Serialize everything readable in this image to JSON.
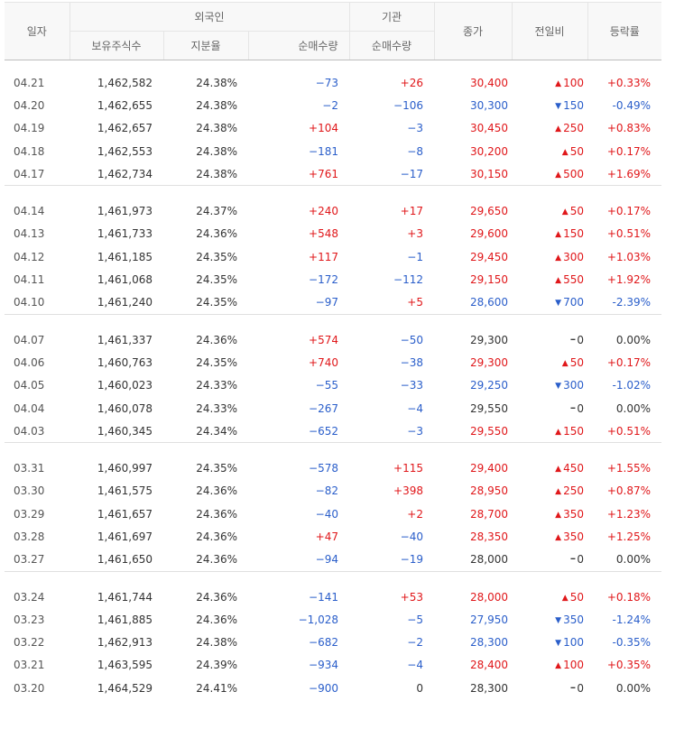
{
  "headers": {
    "date": "일자",
    "foreign": "외국인",
    "institution": "기관",
    "holdings": "보유주식수",
    "ratio": "지분율",
    "foreign_net": "순매수량",
    "inst_net": "순매수량",
    "close": "종가",
    "change": "전일비",
    "rate": "등락률"
  },
  "groups": [
    [
      {
        "date": "04.21",
        "holdings": "1,462,582",
        "ratio": "24.38%",
        "fnet": "−73",
        "inet": "+26",
        "close": "30,400",
        "dir": "up",
        "chg": "100",
        "rate": "+0.33%"
      },
      {
        "date": "04.20",
        "holdings": "1,462,655",
        "ratio": "24.38%",
        "fnet": "−2",
        "inet": "−106",
        "close": "30,300",
        "dir": "down",
        "chg": "150",
        "rate": "-0.49%"
      },
      {
        "date": "04.19",
        "holdings": "1,462,657",
        "ratio": "24.38%",
        "fnet": "+104",
        "inet": "−3",
        "close": "30,450",
        "dir": "up",
        "chg": "250",
        "rate": "+0.83%"
      },
      {
        "date": "04.18",
        "holdings": "1,462,553",
        "ratio": "24.38%",
        "fnet": "−181",
        "inet": "−8",
        "close": "30,200",
        "dir": "up",
        "chg": "50",
        "rate": "+0.17%"
      },
      {
        "date": "04.17",
        "holdings": "1,462,734",
        "ratio": "24.38%",
        "fnet": "+761",
        "inet": "−17",
        "close": "30,150",
        "dir": "up",
        "chg": "500",
        "rate": "+1.69%"
      }
    ],
    [
      {
        "date": "04.14",
        "holdings": "1,461,973",
        "ratio": "24.37%",
        "fnet": "+240",
        "inet": "+17",
        "close": "29,650",
        "dir": "up",
        "chg": "50",
        "rate": "+0.17%"
      },
      {
        "date": "04.13",
        "holdings": "1,461,733",
        "ratio": "24.36%",
        "fnet": "+548",
        "inet": "+3",
        "close": "29,600",
        "dir": "up",
        "chg": "150",
        "rate": "+0.51%"
      },
      {
        "date": "04.12",
        "holdings": "1,461,185",
        "ratio": "24.35%",
        "fnet": "+117",
        "inet": "−1",
        "close": "29,450",
        "dir": "up",
        "chg": "300",
        "rate": "+1.03%"
      },
      {
        "date": "04.11",
        "holdings": "1,461,068",
        "ratio": "24.35%",
        "fnet": "−172",
        "inet": "−112",
        "close": "29,150",
        "dir": "up",
        "chg": "550",
        "rate": "+1.92%"
      },
      {
        "date": "04.10",
        "holdings": "1,461,240",
        "ratio": "24.35%",
        "fnet": "−97",
        "inet": "+5",
        "close": "28,600",
        "dir": "down",
        "chg": "700",
        "rate": "-2.39%"
      }
    ],
    [
      {
        "date": "04.07",
        "holdings": "1,461,337",
        "ratio": "24.36%",
        "fnet": "+574",
        "inet": "−50",
        "close": "29,300",
        "dir": "flat",
        "chg": "0",
        "rate": "0.00%"
      },
      {
        "date": "04.06",
        "holdings": "1,460,763",
        "ratio": "24.35%",
        "fnet": "+740",
        "inet": "−38",
        "close": "29,300",
        "dir": "up",
        "chg": "50",
        "rate": "+0.17%"
      },
      {
        "date": "04.05",
        "holdings": "1,460,023",
        "ratio": "24.33%",
        "fnet": "−55",
        "inet": "−33",
        "close": "29,250",
        "dir": "down",
        "chg": "300",
        "rate": "-1.02%"
      },
      {
        "date": "04.04",
        "holdings": "1,460,078",
        "ratio": "24.33%",
        "fnet": "−267",
        "inet": "−4",
        "close": "29,550",
        "dir": "flat",
        "chg": "0",
        "rate": "0.00%"
      },
      {
        "date": "04.03",
        "holdings": "1,460,345",
        "ratio": "24.34%",
        "fnet": "−652",
        "inet": "−3",
        "close": "29,550",
        "dir": "up",
        "chg": "150",
        "rate": "+0.51%"
      }
    ],
    [
      {
        "date": "03.31",
        "holdings": "1,460,997",
        "ratio": "24.35%",
        "fnet": "−578",
        "inet": "+115",
        "close": "29,400",
        "dir": "up",
        "chg": "450",
        "rate": "+1.55%"
      },
      {
        "date": "03.30",
        "holdings": "1,461,575",
        "ratio": "24.36%",
        "fnet": "−82",
        "inet": "+398",
        "close": "28,950",
        "dir": "up",
        "chg": "250",
        "rate": "+0.87%"
      },
      {
        "date": "03.29",
        "holdings": "1,461,657",
        "ratio": "24.36%",
        "fnet": "−40",
        "inet": "+2",
        "close": "28,700",
        "dir": "up",
        "chg": "350",
        "rate": "+1.23%"
      },
      {
        "date": "03.28",
        "holdings": "1,461,697",
        "ratio": "24.36%",
        "fnet": "+47",
        "inet": "−40",
        "close": "28,350",
        "dir": "up",
        "chg": "350",
        "rate": "+1.25%"
      },
      {
        "date": "03.27",
        "holdings": "1,461,650",
        "ratio": "24.36%",
        "fnet": "−94",
        "inet": "−19",
        "close": "28,000",
        "dir": "flat",
        "chg": "0",
        "rate": "0.00%"
      }
    ],
    [
      {
        "date": "03.24",
        "holdings": "1,461,744",
        "ratio": "24.36%",
        "fnet": "−141",
        "inet": "+53",
        "close": "28,000",
        "dir": "up",
        "chg": "50",
        "rate": "+0.18%"
      },
      {
        "date": "03.23",
        "holdings": "1,461,885",
        "ratio": "24.36%",
        "fnet": "−1,028",
        "inet": "−5",
        "close": "27,950",
        "dir": "down",
        "chg": "350",
        "rate": "-1.24%"
      },
      {
        "date": "03.22",
        "holdings": "1,462,913",
        "ratio": "24.38%",
        "fnet": "−682",
        "inet": "−2",
        "close": "28,300",
        "dir": "down",
        "chg": "100",
        "rate": "-0.35%"
      },
      {
        "date": "03.21",
        "holdings": "1,463,595",
        "ratio": "24.39%",
        "fnet": "−934",
        "inet": "−4",
        "close": "28,400",
        "dir": "up",
        "chg": "100",
        "rate": "+0.35%"
      },
      {
        "date": "03.20",
        "holdings": "1,464,529",
        "ratio": "24.41%",
        "fnet": "−900",
        "inet": "0",
        "close": "28,300",
        "dir": "flat",
        "chg": "0",
        "rate": "0.00%"
      }
    ]
  ],
  "colors": {
    "up": "#e0171a",
    "down": "#2a5eca",
    "flat": "#333333"
  },
  "icons": {
    "up": "triangle-up-icon",
    "down": "triangle-down-icon",
    "flat": "dash-icon"
  }
}
